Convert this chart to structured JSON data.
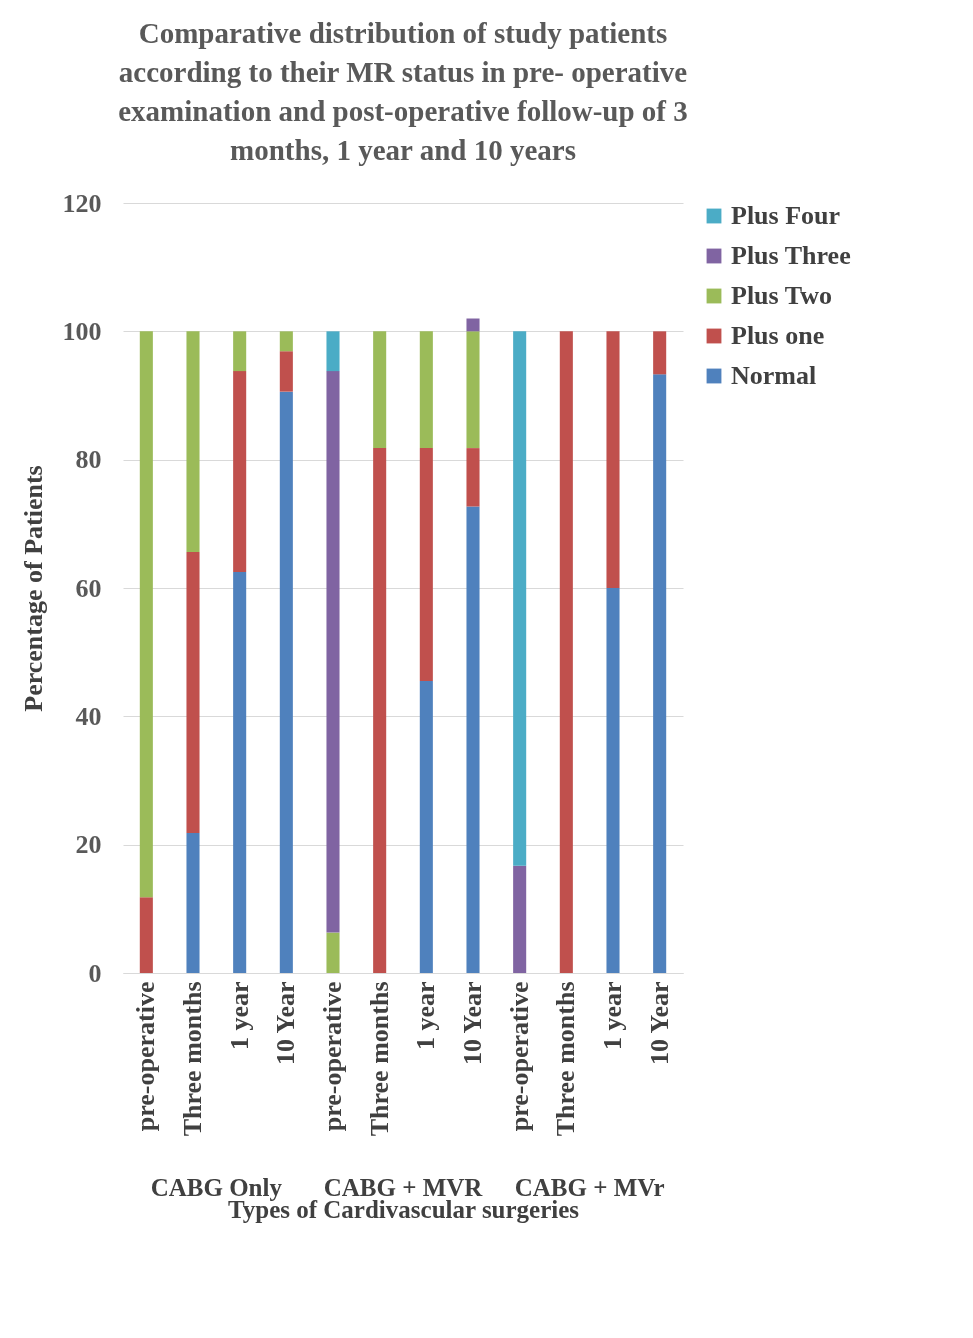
{
  "chart_data": {
    "type": "bar",
    "stacked": true,
    "title": "Comparative distribution of study patients according to their MR status in pre- operative examination and post-operative follow-up of 3 months, 1 year and 10 years",
    "xlabel": "Types of Cardivascular surgeries",
    "ylabel": "Percentage of Patients",
    "categories": [
      "pre-operative",
      "Three months",
      "1 year",
      "10 Year",
      "pre-operative",
      "Three months",
      "1 year",
      "10 Year",
      "pre-operative",
      "Three months",
      "1 year",
      "10 Year"
    ],
    "series": [
      {
        "name": "Normal",
        "color": "#4f81bd",
        "values": [
          null,
          21.8,
          62.5,
          90.6,
          null,
          null,
          45.5,
          72.7,
          null,
          null,
          60,
          93.3
        ]
      },
      {
        "name": "Plus one",
        "color": "#c0504d",
        "values": [
          11.8,
          43.8,
          31.3,
          6.3,
          null,
          81.8,
          36.3,
          9.1,
          null,
          100,
          40,
          6.7
        ]
      },
      {
        "name": "Plus Two",
        "color": "#9bbb59",
        "values": [
          88.2,
          34.4,
          6.2,
          3.1,
          6.3,
          18.2,
          18.2,
          18.2,
          null,
          null,
          null,
          null
        ]
      },
      {
        "name": "Plus Three",
        "color": "#8064a2",
        "values": [
          null,
          null,
          null,
          null,
          87.5,
          null,
          null,
          2,
          16.7,
          null,
          null,
          null
        ]
      },
      {
        "name": "Plus Four",
        "color": "#4bacc6",
        "values": [
          null,
          null,
          null,
          null,
          6.2,
          null,
          null,
          null,
          83.3,
          null,
          null,
          null
        ]
      }
    ],
    "annotations": [
      "CABG Only",
      "CABG + MVR",
      "CABG + MVr"
    ],
    "ylim": [
      0,
      120
    ],
    "yticks": [
      0,
      20,
      40,
      60,
      80,
      100,
      120
    ],
    "grid": "y",
    "legend": "right"
  }
}
